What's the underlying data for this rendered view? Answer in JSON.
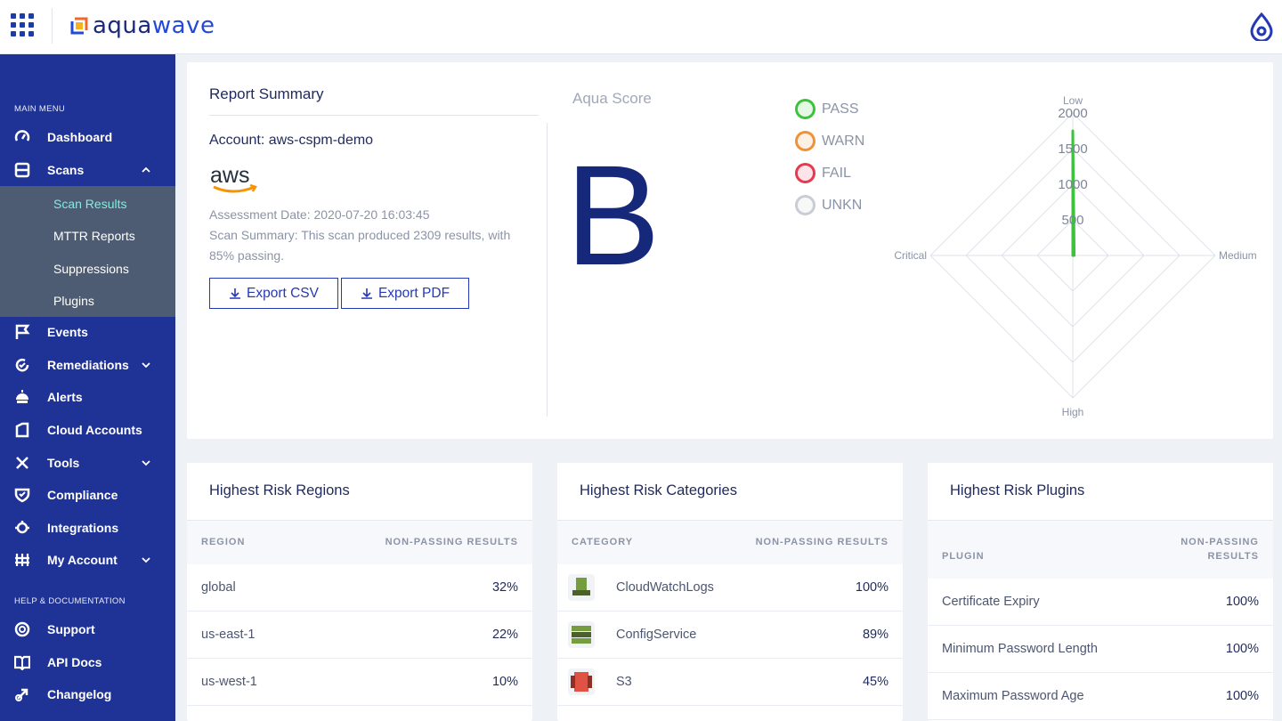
{
  "app": {
    "brand_prefix": "aqua",
    "brand_suffix": "wave",
    "brand_color": "#1f3396",
    "accent_color": "#2539b4"
  },
  "sidebar": {
    "main_menu_heading": "MAIN MENU",
    "help_heading": "HELP & DOCUMENTATION",
    "items": [
      {
        "label": "Dashboard",
        "icon": "gauge-icon"
      },
      {
        "label": "Scans",
        "icon": "scan-icon",
        "expanded": true
      },
      {
        "label": "Events",
        "icon": "flag-icon"
      },
      {
        "label": "Remediations",
        "icon": "refresh-check-icon"
      },
      {
        "label": "Alerts",
        "icon": "alert-icon"
      },
      {
        "label": "Cloud Accounts",
        "icon": "cloud-book-icon"
      },
      {
        "label": "Tools",
        "icon": "tools-icon"
      },
      {
        "label": "Compliance",
        "icon": "shield-check-icon"
      },
      {
        "label": "Integrations",
        "icon": "plug-icon"
      },
      {
        "label": "My Account",
        "icon": "account-grid-icon"
      }
    ],
    "scan_subitems": [
      {
        "label": "Scan Results",
        "active": true
      },
      {
        "label": "MTTR Reports"
      },
      {
        "label": "Suppressions"
      },
      {
        "label": "Plugins"
      }
    ],
    "help_items": [
      {
        "label": "Support",
        "icon": "lifebuoy-icon"
      },
      {
        "label": "API Docs",
        "icon": "book-icon"
      },
      {
        "label": "Changelog",
        "icon": "rocket-icon"
      }
    ]
  },
  "summary": {
    "title": "Report Summary",
    "account": "Account: aws-cspm-demo",
    "provider_logo": "aws",
    "assessment_date": "Assessment Date: 2020-07-20 16:03:45",
    "scan_summary": "Scan Summary: This scan produced 2309 results, with 85% passing.",
    "export_csv": "Export CSV",
    "export_pdf": "Export PDF",
    "aqua_score_label": "Aqua Score",
    "grade": "B",
    "legend": [
      {
        "label": "PASS",
        "color": "#3cc23c"
      },
      {
        "label": "WARN",
        "color": "#f0913a"
      },
      {
        "label": "FAIL",
        "color": "#e8384f"
      },
      {
        "label": "UNKN",
        "color": "#c9ccd3"
      }
    ]
  },
  "chart_data": {
    "type": "radar",
    "axes": [
      "Low",
      "Medium",
      "High",
      "Critical"
    ],
    "tick_labels": [
      "500",
      "1000",
      "1500",
      "2000"
    ],
    "rlim": [
      0,
      2000
    ],
    "series": [
      {
        "color": "#3cc23c",
        "values": [
          1750,
          20,
          0,
          0
        ]
      }
    ]
  },
  "regions": {
    "title": "Highest Risk Regions",
    "col_name": "REGION",
    "col_value": "NON-PASSING RESULTS",
    "rows": [
      {
        "name": "global",
        "value": "32%"
      },
      {
        "name": "us-east-1",
        "value": "22%"
      },
      {
        "name": "us-west-1",
        "value": "10%"
      }
    ]
  },
  "categories": {
    "title": "Highest Risk Categories",
    "col_name": "CATEGORY",
    "col_value": "NON-PASSING RESULTS",
    "rows": [
      {
        "name": "CloudWatchLogs",
        "value": "100%",
        "icon": "cloudwatch-icon"
      },
      {
        "name": "ConfigService",
        "value": "89%",
        "icon": "config-service-icon"
      },
      {
        "name": "S3",
        "value": "45%",
        "icon": "s3-bucket-icon"
      }
    ]
  },
  "plugins": {
    "title": "Highest Risk Plugins",
    "col_name": "PLUGIN",
    "col_value_1": "NON-PASSING",
    "col_value_2": "RESULTS",
    "rows": [
      {
        "name": "Certificate Expiry",
        "value": "100%"
      },
      {
        "name": "Minimum Password Length",
        "value": "100%"
      },
      {
        "name": "Maximum Password Age",
        "value": "100%"
      }
    ]
  }
}
